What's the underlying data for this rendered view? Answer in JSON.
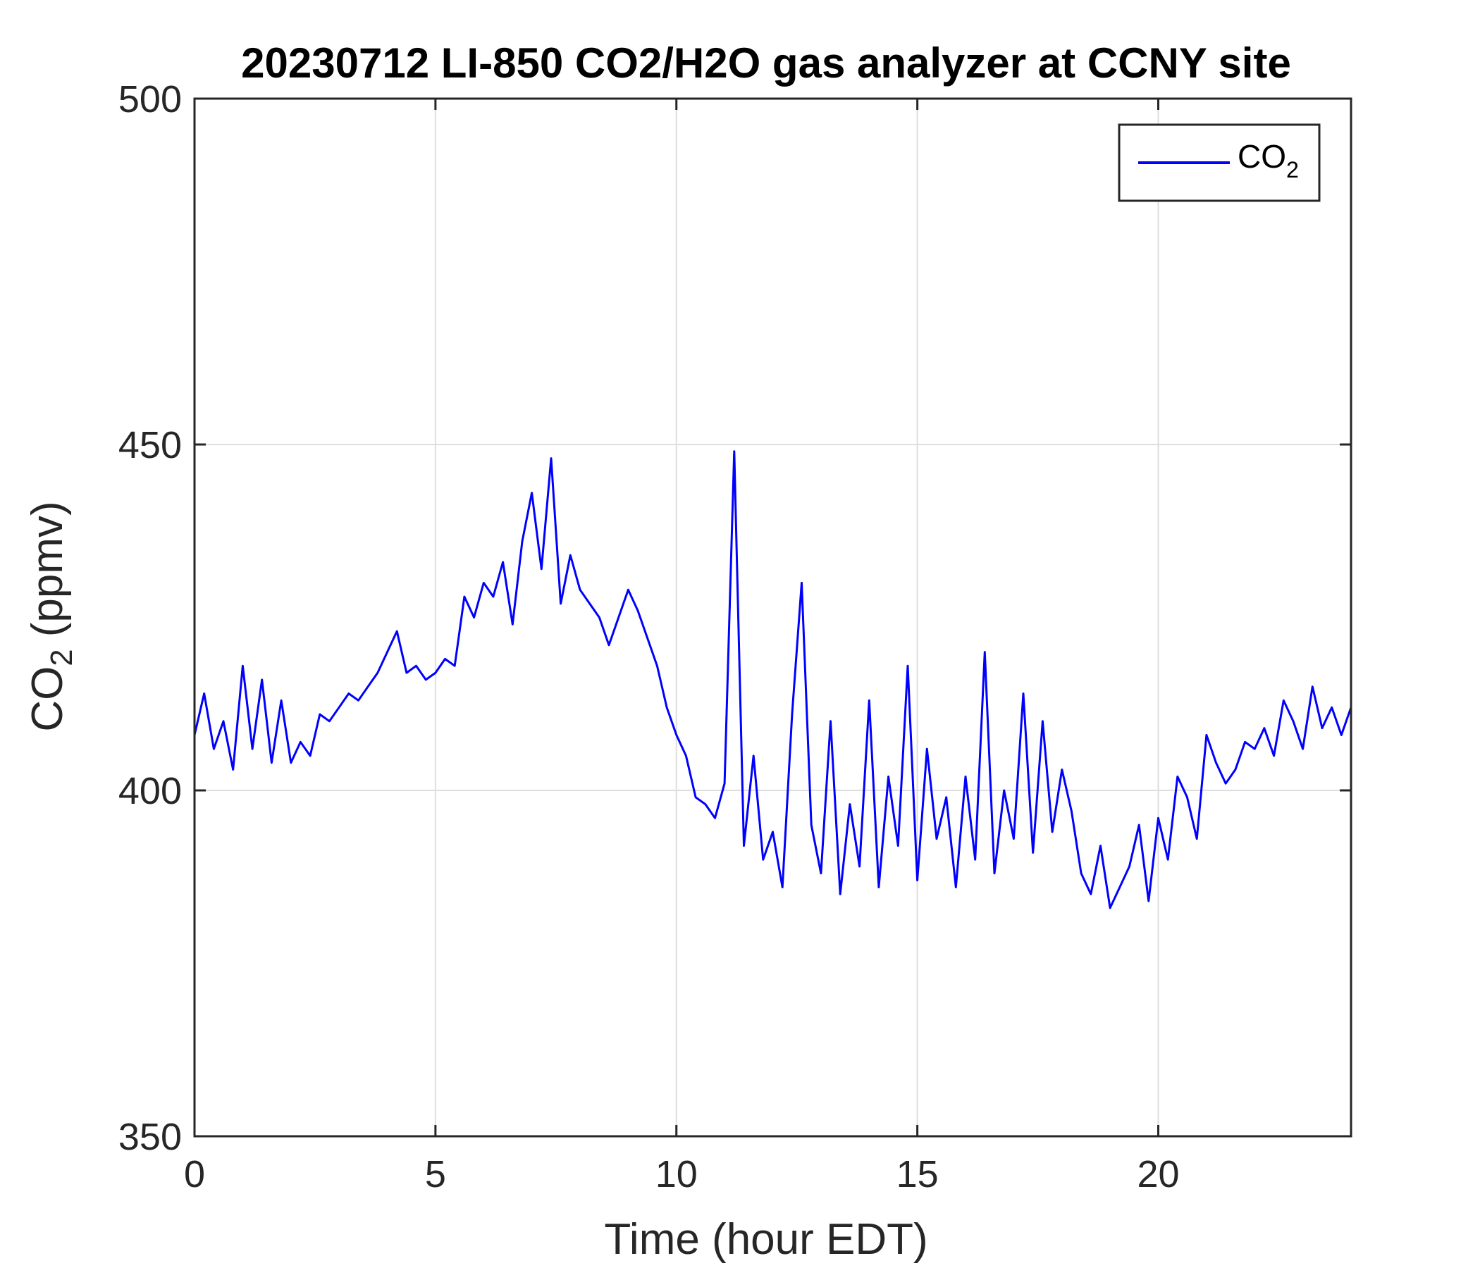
{
  "chart_data": {
    "type": "line",
    "title": "20230712 LI-850 CO2/H2O gas analyzer at CCNY site",
    "xlabel": {
      "prefix": "Time (hour EDT)"
    },
    "ylabel": {
      "base": "CO",
      "subscript": "2",
      "suffix": " (ppmv)"
    },
    "xlim": [
      0,
      24
    ],
    "ylim": [
      350,
      500
    ],
    "xticks": [
      0,
      5,
      10,
      15,
      20
    ],
    "yticks": [
      350,
      400,
      450,
      500
    ],
    "xtick_labels": [
      "0",
      "5",
      "10",
      "15",
      "20"
    ],
    "ytick_labels": [
      "350",
      "400",
      "450",
      "500"
    ],
    "grid": true,
    "legend": {
      "placement": "top-right",
      "entries": [
        {
          "base": "CO",
          "subscript": "2",
          "color": "#0000ff"
        }
      ]
    },
    "series": [
      {
        "name": "CO2",
        "color": "#0000ff",
        "x": [
          0.0,
          0.2,
          0.4,
          0.6,
          0.8,
          1.0,
          1.2,
          1.4,
          1.6,
          1.8,
          2.0,
          2.2,
          2.4,
          2.6,
          2.8,
          3.0,
          3.2,
          3.4,
          3.6,
          3.8,
          4.0,
          4.2,
          4.4,
          4.6,
          4.8,
          5.0,
          5.2,
          5.4,
          5.6,
          5.8,
          6.0,
          6.2,
          6.4,
          6.6,
          6.8,
          7.0,
          7.2,
          7.4,
          7.6,
          7.8,
          8.0,
          8.2,
          8.4,
          8.6,
          8.8,
          9.0,
          9.2,
          9.4,
          9.6,
          9.8,
          10.0,
          10.2,
          10.4,
          10.6,
          10.8,
          11.0,
          11.2,
          11.4,
          11.6,
          11.8,
          12.0,
          12.2,
          12.4,
          12.6,
          12.8,
          13.0,
          13.2,
          13.4,
          13.6,
          13.8,
          14.0,
          14.2,
          14.4,
          14.6,
          14.8,
          15.0,
          15.2,
          15.4,
          15.6,
          15.8,
          16.0,
          16.2,
          16.4,
          16.6,
          16.8,
          17.0,
          17.2,
          17.4,
          17.6,
          17.8,
          18.0,
          18.2,
          18.4,
          18.6,
          18.8,
          19.0,
          19.2,
          19.4,
          19.6,
          19.8,
          20.0,
          20.2,
          20.4,
          20.6,
          20.8,
          21.0,
          21.2,
          21.4,
          21.6,
          21.8,
          22.0,
          22.2,
          22.4,
          22.6,
          22.8,
          23.0,
          23.2,
          23.4,
          23.6,
          23.8,
          24.0
        ],
        "y": [
          408,
          414,
          406,
          410,
          403,
          418,
          406,
          416,
          404,
          413,
          404,
          407,
          405,
          411,
          410,
          412,
          414,
          413,
          415,
          417,
          420,
          423,
          417,
          418,
          416,
          417,
          419,
          418,
          428,
          425,
          430,
          428,
          433,
          424,
          436,
          443,
          432,
          448,
          427,
          434,
          429,
          427,
          425,
          421,
          425,
          429,
          426,
          422,
          418,
          412,
          408,
          405,
          399,
          398,
          396,
          401,
          449,
          392,
          405,
          390,
          394,
          386,
          411,
          430,
          395,
          388,
          410,
          385,
          398,
          389,
          413,
          386,
          402,
          392,
          418,
          387,
          406,
          393,
          399,
          386,
          402,
          390,
          420,
          388,
          400,
          393,
          414,
          391,
          410,
          394,
          403,
          397,
          388,
          385,
          392,
          383,
          386,
          389,
          395,
          384,
          396,
          390,
          402,
          399,
          393,
          408,
          404,
          401,
          403,
          407,
          406,
          409,
          405,
          413,
          410,
          406,
          415,
          409,
          412,
          408,
          412
        ]
      }
    ]
  }
}
